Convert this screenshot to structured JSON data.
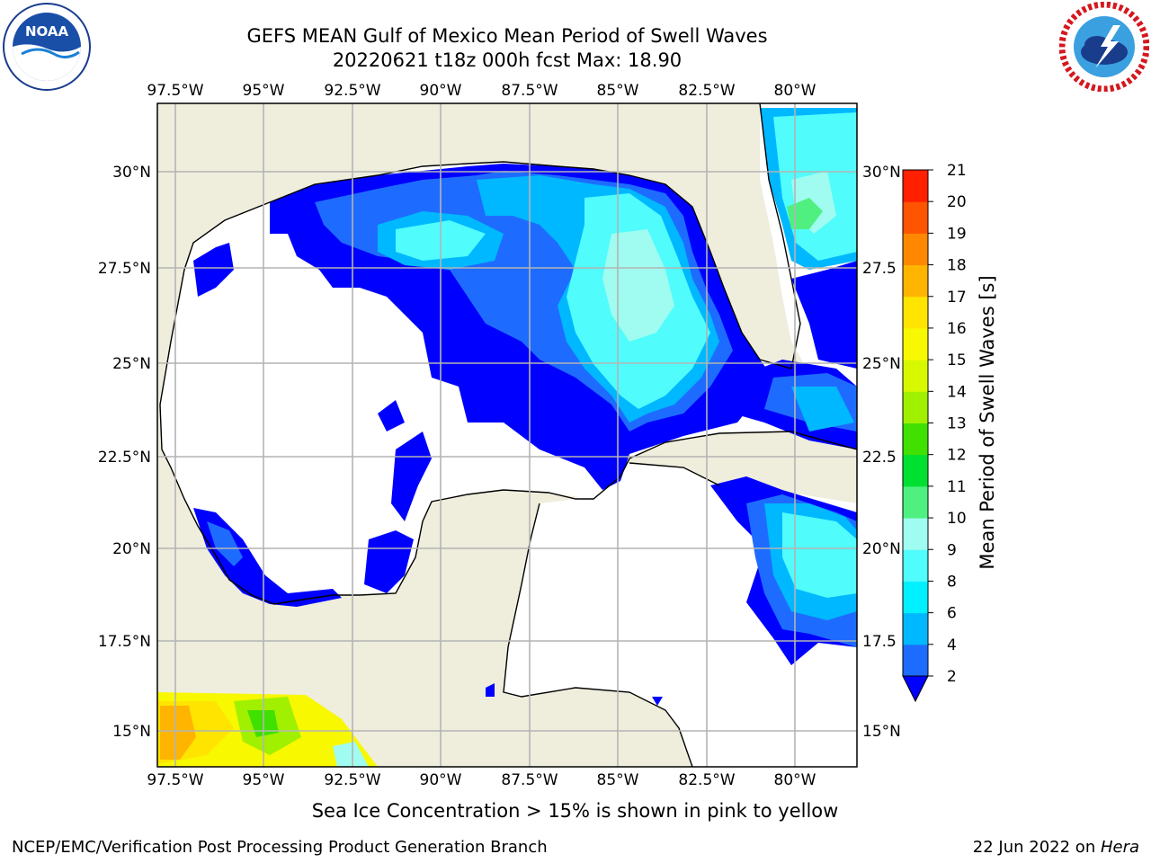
{
  "header": {
    "title_line1": "GEFS MEAN Gulf of Mexico Mean Period of Swell Waves",
    "title_line2": "20220621 t18z 000h fcst   Max: 18.90"
  },
  "logos": {
    "left": "NOAA",
    "left_ring": "NATIONAL OCEANIC AND ATMOSPHERIC ADMINISTRATION · U.S. DEPARTMENT OF COMMERCE",
    "right_ring": "NATIONAL WEATHER SERVICE"
  },
  "map": {
    "lon_labels": [
      "97.5°W",
      "95°W",
      "92.5°W",
      "90°W",
      "87.5°W",
      "85°W",
      "82.5°W",
      "80°W"
    ],
    "lat_labels_left": [
      "30°N",
      "27.5°N",
      "25°N",
      "22.5°N",
      "20°N",
      "17.5°N",
      "15°N"
    ],
    "lat_labels_right": [
      "30°N",
      "27.5",
      "25°N",
      "22.5",
      "20°N",
      "17.5",
      "15°N"
    ],
    "land_color": "#efeddc",
    "grid": true
  },
  "colorbar": {
    "label": "Mean Period of Swell Waves [s]",
    "ticks": [
      "2",
      "4",
      "6",
      "8",
      "9",
      "10",
      "11",
      "12",
      "13",
      "14",
      "15",
      "16",
      "17",
      "18",
      "19",
      "20",
      "21"
    ],
    "colors": [
      "#1e6cff",
      "#00b8ff",
      "#00f0ff",
      "#50fcfc",
      "#a0fcf0",
      "#50f080",
      "#00e030",
      "#40e000",
      "#a0f000",
      "#d8f800",
      "#f8f800",
      "#ffe400",
      "#ffb400",
      "#ff8800",
      "#ff5400",
      "#ff2000",
      "#ff0000"
    ],
    "extend_color": "#0000ff"
  },
  "note": "Sea Ice Concentration > 15% is shown in pink to yellow",
  "footer": {
    "left": "NCEP/EMC/Verification Post Processing Product Generation Branch",
    "right_date": "22 Jun 2022 on ",
    "right_host": "Hera"
  }
}
